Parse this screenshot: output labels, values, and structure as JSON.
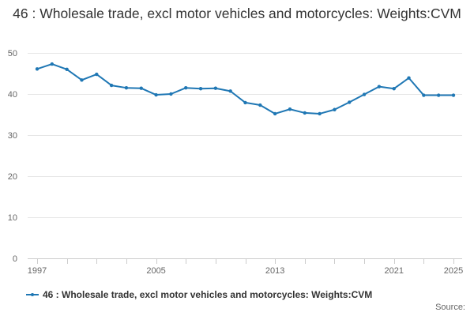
{
  "chart_data": {
    "type": "line",
    "title": "46 : Wholesale trade, excl motor vehicles and motorcycles: Weights:CVM",
    "xlabel": "",
    "ylabel": "",
    "x": [
      1997,
      1998,
      1999,
      2000,
      2001,
      2002,
      2003,
      2004,
      2005,
      2006,
      2007,
      2008,
      2009,
      2010,
      2011,
      2012,
      2013,
      2014,
      2015,
      2016,
      2017,
      2018,
      2019,
      2020,
      2021,
      2022,
      2023,
      2024,
      2025
    ],
    "xlim": [
      1997,
      2025
    ],
    "x_tick_labels": [
      "1997",
      "2005",
      "2013",
      "2021",
      "2025"
    ],
    "ylim": [
      0,
      50
    ],
    "y_ticks": [
      0,
      10,
      20,
      30,
      40,
      50
    ],
    "grid": true,
    "legend_position": "bottom",
    "series": [
      {
        "name": "46 : Wholesale trade, excl motor vehicles and motorcycles: Weights:CVM",
        "color": "#1f77b4",
        "values": [
          46.1,
          47.3,
          46.0,
          43.4,
          44.8,
          42.1,
          41.5,
          41.4,
          39.8,
          40.0,
          41.5,
          41.3,
          41.4,
          40.7,
          37.9,
          37.3,
          35.2,
          36.3,
          35.4,
          35.2,
          36.2,
          38.0,
          39.9,
          41.8,
          41.3,
          43.9,
          39.7,
          39.7,
          39.7
        ]
      }
    ]
  },
  "legend": {
    "label": "46 : Wholesale trade, excl motor vehicles and motorcycles: Weights:CVM"
  },
  "source": {
    "label": "Source:"
  }
}
